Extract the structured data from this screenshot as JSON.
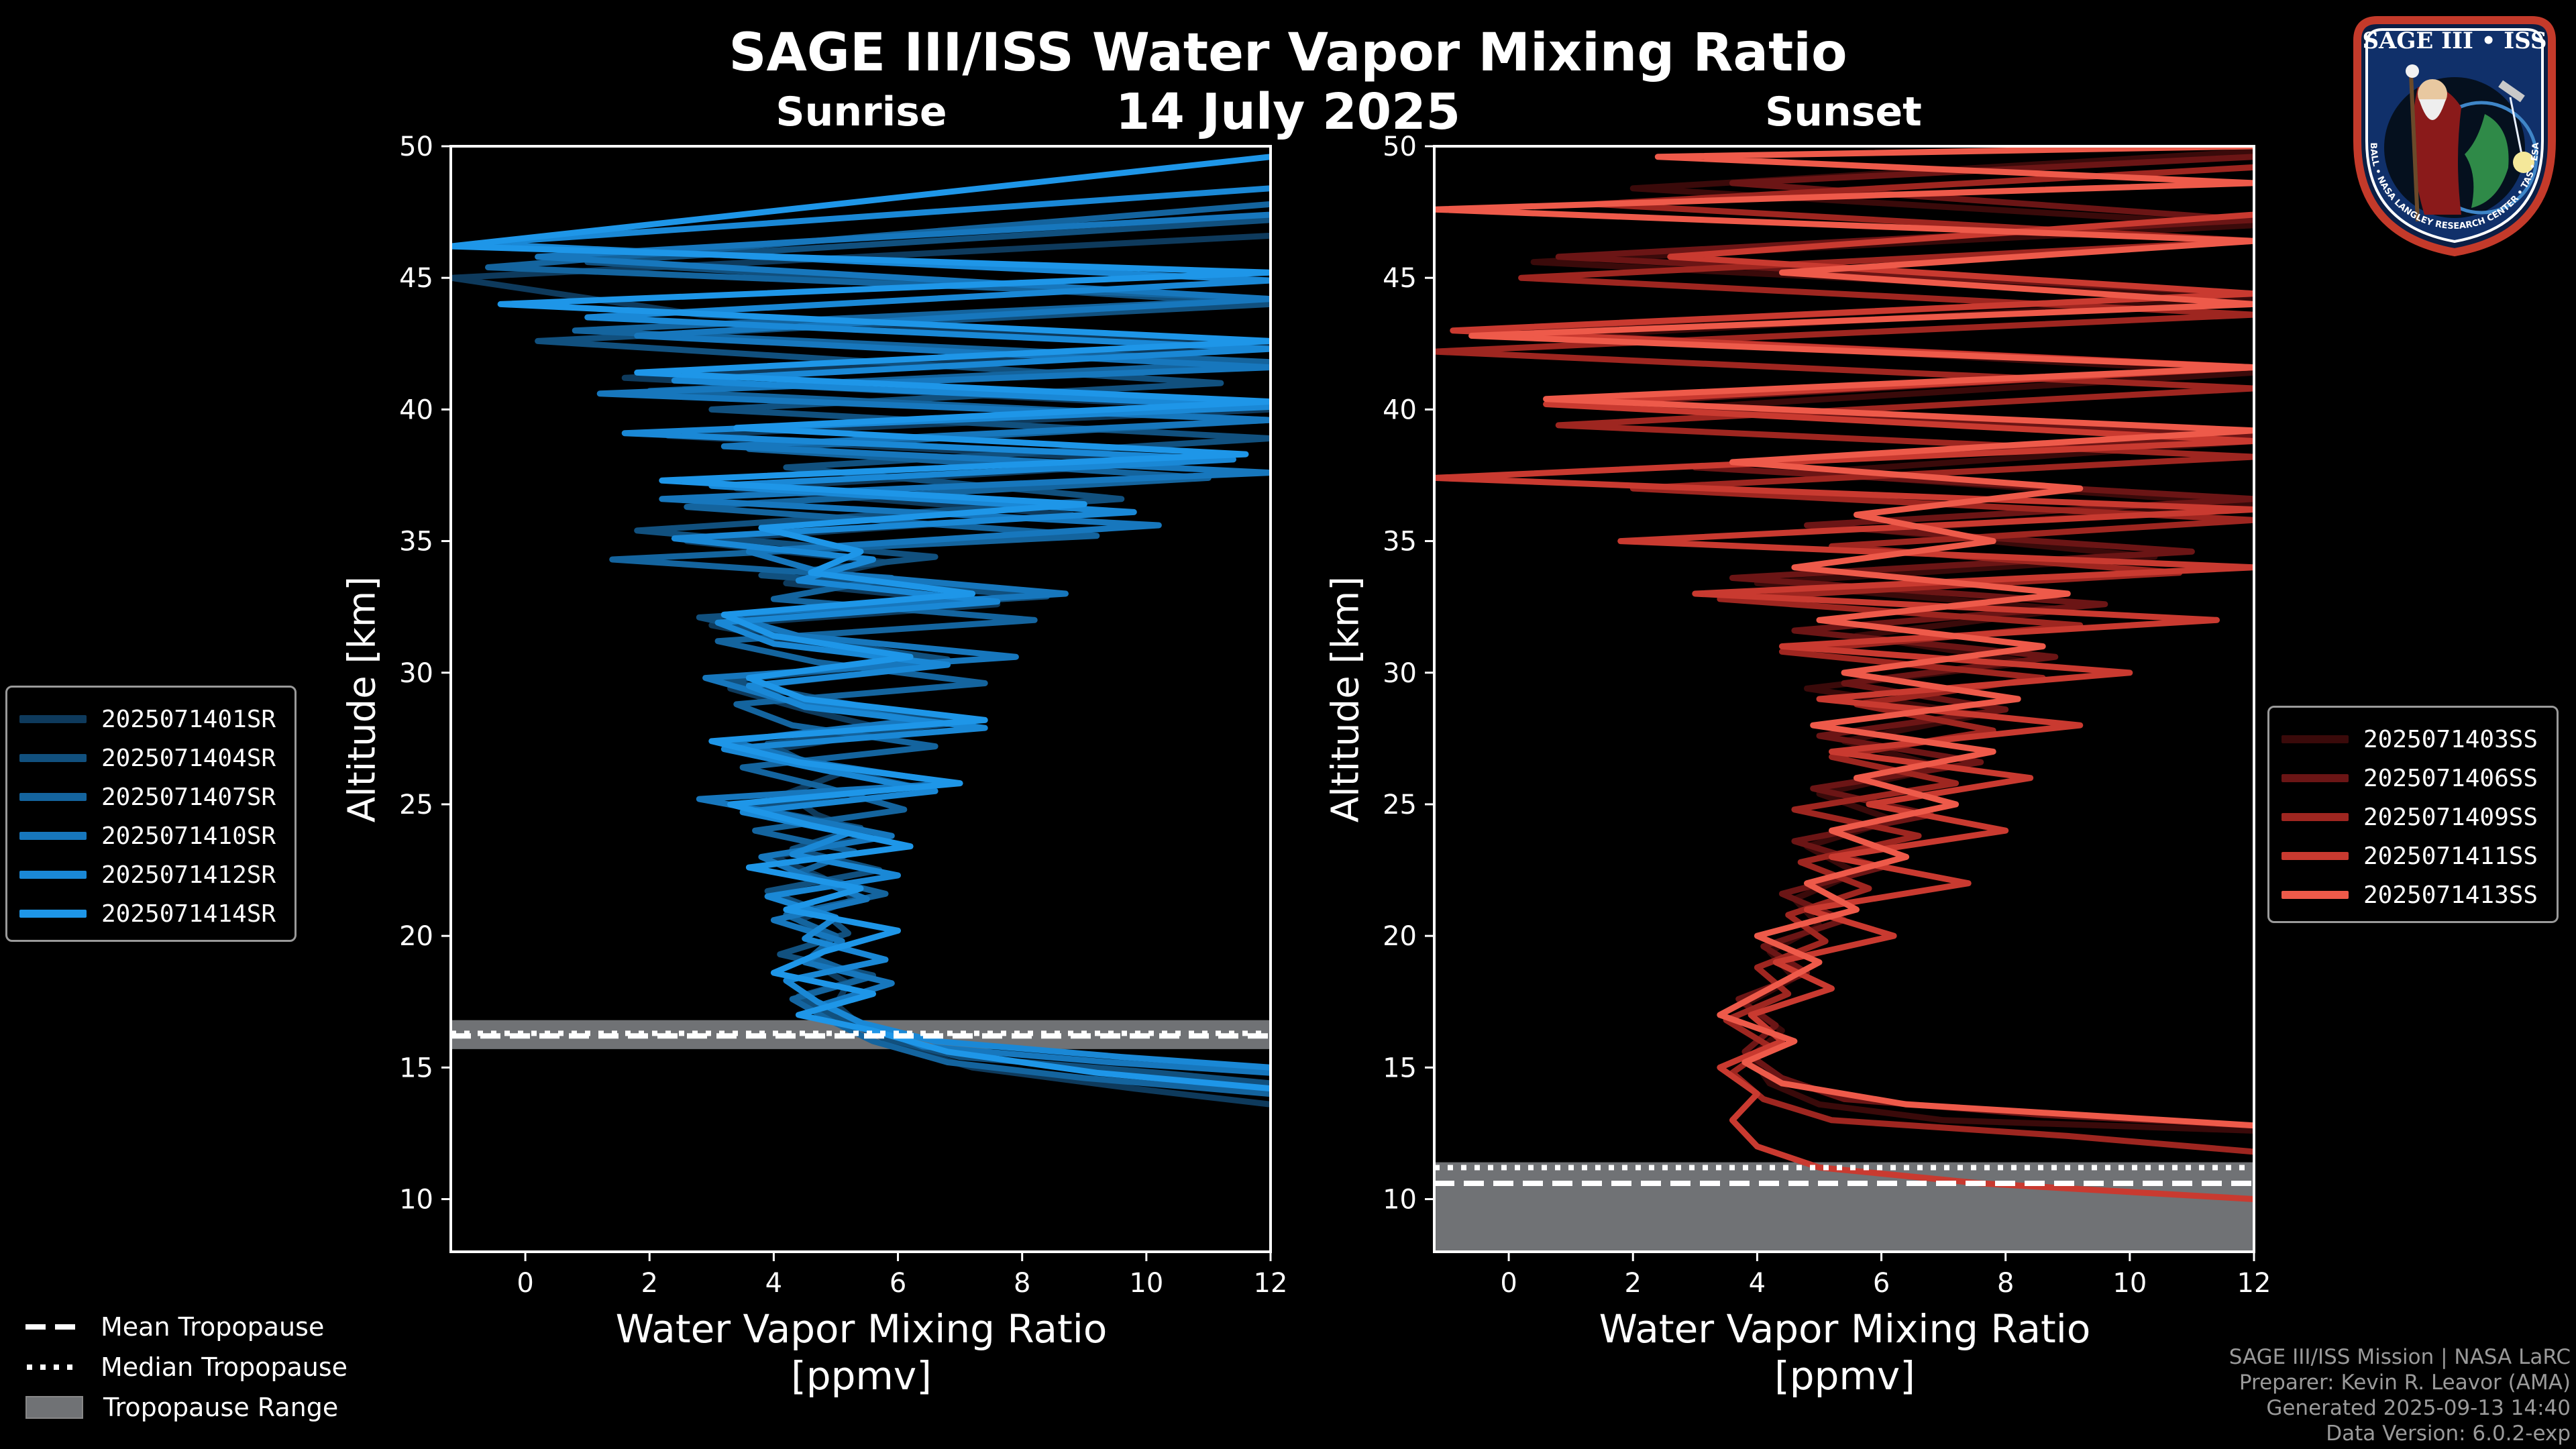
{
  "header": {
    "title": "SAGE III/ISS Water Vapor Mixing Ratio",
    "date": "14 July 2025"
  },
  "panels": {
    "sunrise": {
      "title": "Sunrise",
      "ylabel": "Altitude [km]",
      "xlabel_line1": "Water Vapor Mixing Ratio",
      "xlabel_line2": "[ppmv]"
    },
    "sunset": {
      "title": "Sunset",
      "ylabel": "Altitude [km]",
      "xlabel_line1": "Water Vapor Mixing Ratio",
      "xlabel_line2": "[ppmv]"
    }
  },
  "legend_sunrise": [
    {
      "label": "2025071401SR",
      "color": "#0e3a5c"
    },
    {
      "label": "2025071404SR",
      "color": "#11507e"
    },
    {
      "label": "2025071407SR",
      "color": "#14649e"
    },
    {
      "label": "2025071410SR",
      "color": "#1777bd"
    },
    {
      "label": "2025071412SR",
      "color": "#1a88d6"
    },
    {
      "label": "2025071414SR",
      "color": "#1e96e8"
    }
  ],
  "legend_sunset": [
    {
      "label": "2025071403SS",
      "color": "#3a0a0a"
    },
    {
      "label": "2025071406SS",
      "color": "#6b1515"
    },
    {
      "label": "2025071409SS",
      "color": "#9e2620"
    },
    {
      "label": "2025071411SS",
      "color": "#c93a30"
    },
    {
      "label": "2025071413SS",
      "color": "#ee5a4a"
    }
  ],
  "tropopause_legend": {
    "mean": "Mean Tropopause",
    "median": "Median Tropopause",
    "range": "Tropopause Range",
    "range_color": "#707275"
  },
  "credits": {
    "line1": "SAGE III/ISS Mission | NASA LaRC",
    "line2": "Preparer: Kevin R. Leavor (AMA)",
    "line3": "Generated 2025-09-13 14:40",
    "line4": "Data Version: 6.0.2-exp"
  },
  "logo": {
    "top_text": "SAGE III • ISS",
    "ring_text": "BALL • NASA LANGLEY RESEARCH CENTER • TAS • ESA"
  },
  "chart_data": [
    {
      "type": "line",
      "name": "Sunrise",
      "title": "Sunrise",
      "xlabel": "Water Vapor Mixing Ratio [ppmv]",
      "ylabel": "Altitude [km]",
      "xlim": [
        -1.2,
        12
      ],
      "ylim": [
        8,
        50
      ],
      "xticks": [
        0,
        2,
        4,
        6,
        8,
        10,
        12
      ],
      "yticks": [
        10,
        15,
        20,
        25,
        30,
        35,
        40,
        45,
        50
      ],
      "tropopause": {
        "mean": 16.2,
        "median": 16.3,
        "range": [
          15.7,
          16.8
        ]
      },
      "series": [
        {
          "name": "2025071401SR",
          "x": [
            12,
            9.8,
            7.2,
            6.0,
            5.4,
            5.0,
            5.2,
            4.6,
            4.9,
            4.4,
            5.3,
            4.8,
            4.0,
            5.6,
            4.7,
            4.2,
            5.1,
            3.8,
            5.9,
            4.5,
            3.3,
            6.4,
            4.8,
            3.0,
            7.6,
            4.2,
            5.8,
            2.6,
            8.8,
            3.4,
            10.6,
            2.3,
            12,
            1.6,
            12,
            2.8,
            -1.2,
            12
          ],
          "y": [
            13.6,
            14.2,
            15.0,
            15.8,
            16.6,
            17.4,
            18.2,
            19.0,
            19.8,
            20.6,
            21.4,
            22.2,
            23.0,
            23.8,
            24.6,
            25.4,
            26.2,
            27.0,
            27.8,
            28.6,
            29.4,
            30.2,
            31.0,
            31.8,
            32.6,
            33.4,
            34.2,
            35.0,
            36.0,
            37.0,
            38.0,
            39.0,
            40.0,
            41.2,
            42.4,
            43.6,
            45.0,
            46.6
          ]
        },
        {
          "name": "2025071404SR",
          "x": [
            12,
            10.2,
            7.0,
            5.8,
            5.0,
            4.4,
            5.6,
            4.1,
            5.2,
            4.8,
            3.9,
            5.7,
            4.3,
            5.4,
            3.6,
            6.2,
            4.6,
            3.9,
            7.0,
            5.0,
            3.2,
            6.8,
            4.4,
            2.8,
            8.4,
            3.8,
            6.6,
            1.8,
            9.6,
            4.2,
            12,
            3.0,
            11.2,
            0.2,
            12,
            1.0,
            12
          ],
          "y": [
            14.4,
            14.8,
            15.4,
            16.1,
            16.9,
            17.7,
            18.5,
            19.3,
            20.1,
            20.9,
            21.7,
            22.5,
            23.3,
            24.1,
            24.9,
            25.7,
            26.5,
            27.3,
            28.1,
            28.9,
            29.7,
            30.5,
            31.3,
            32.1,
            32.9,
            33.7,
            34.4,
            35.4,
            36.6,
            37.8,
            38.9,
            40.0,
            41.0,
            42.6,
            44.0,
            45.6,
            47.2
          ]
        },
        {
          "name": "2025071407SR",
          "x": [
            12,
            9.0,
            6.8,
            5.6,
            4.9,
            4.3,
            5.5,
            4.6,
            5.0,
            4.2,
            5.8,
            4.4,
            5.3,
            3.7,
            6.1,
            4.9,
            3.5,
            6.6,
            4.3,
            3.4,
            7.4,
            4.7,
            3.1,
            8.2,
            4.0,
            5.9,
            1.4,
            9.2,
            2.6,
            11.0,
            3.6,
            12,
            2.0,
            12,
            0.8,
            12,
            -0.6,
            12
          ],
          "y": [
            14.0,
            14.6,
            15.2,
            16.0,
            16.8,
            17.6,
            18.4,
            19.2,
            20.0,
            20.8,
            21.6,
            22.4,
            23.2,
            24.0,
            24.8,
            25.6,
            26.4,
            27.2,
            28.0,
            28.8,
            29.6,
            30.4,
            31.2,
            32.0,
            32.8,
            33.6,
            34.3,
            35.2,
            36.3,
            37.4,
            38.5,
            39.6,
            40.7,
            41.8,
            43.0,
            44.2,
            45.4,
            47.8
          ]
        },
        {
          "name": "2025071410SR",
          "x": [
            12,
            9.4,
            6.4,
            5.5,
            4.8,
            5.9,
            4.5,
            5.1,
            4.0,
            5.5,
            4.6,
            3.8,
            5.9,
            4.2,
            2.8,
            6.9,
            4.6,
            3.3,
            6.3,
            4.1,
            2.9,
            7.9,
            4.4,
            3.2,
            8.7,
            4.8,
            3.6,
            10.2,
            2.2,
            12,
            3.2,
            12,
            1.2,
            12,
            1.8,
            12,
            0.2,
            12
          ],
          "y": [
            14.8,
            15.2,
            15.8,
            16.6,
            17.4,
            18.2,
            19.0,
            19.8,
            20.6,
            21.4,
            22.2,
            23.0,
            23.8,
            24.6,
            25.2,
            25.8,
            26.6,
            27.4,
            28.2,
            29.0,
            29.8,
            30.6,
            31.4,
            32.2,
            33.0,
            33.8,
            34.6,
            35.6,
            36.6,
            37.6,
            38.6,
            39.6,
            40.6,
            41.6,
            42.8,
            44.2,
            45.8,
            47.4
          ]
        },
        {
          "name": "2025071412SR",
          "x": [
            12,
            9.6,
            6.6,
            5.4,
            4.7,
            4.2,
            5.8,
            4.5,
            5.0,
            3.9,
            6.0,
            4.3,
            5.2,
            3.5,
            6.6,
            4.8,
            3.2,
            7.4,
            4.5,
            3.6,
            6.8,
            4.0,
            3.1,
            7.6,
            4.4,
            5.6,
            2.4,
            9.8,
            3.0,
            11.4,
            1.6,
            12,
            2.4,
            12,
            1.0,
            12,
            -0.8,
            12
          ],
          "y": [
            15.0,
            15.4,
            16.0,
            16.7,
            17.5,
            18.3,
            19.1,
            19.9,
            20.7,
            21.5,
            22.3,
            23.1,
            23.9,
            24.7,
            25.5,
            26.3,
            27.1,
            27.9,
            28.7,
            29.5,
            30.3,
            31.1,
            31.9,
            32.7,
            33.5,
            34.3,
            35.1,
            36.1,
            37.1,
            38.1,
            39.1,
            40.1,
            41.1,
            42.3,
            43.5,
            44.9,
            46.3,
            48.4
          ]
        },
        {
          "name": "2025071414SR",
          "x": [
            12,
            9.2,
            6.8,
            5.6,
            4.4,
            5.6,
            4.0,
            4.8,
            6.0,
            4.2,
            5.4,
            3.6,
            6.2,
            4.6,
            3.3,
            7.0,
            4.4,
            3.0,
            7.4,
            4.5,
            3.6,
            6.2,
            4.0,
            3.2,
            7.2,
            4.6,
            5.4,
            3.8,
            9.0,
            2.2,
            11.6,
            3.4,
            12,
            1.8,
            12,
            -0.4,
            12,
            -1.2,
            12
          ],
          "y": [
            14.2,
            14.8,
            15.6,
            16.4,
            17.0,
            17.8,
            18.6,
            19.4,
            20.2,
            21.0,
            21.8,
            22.6,
            23.4,
            24.2,
            25.0,
            25.8,
            26.6,
            27.4,
            28.2,
            29.0,
            29.8,
            30.6,
            31.4,
            32.2,
            33.0,
            33.8,
            34.6,
            35.5,
            36.4,
            37.3,
            38.3,
            39.3,
            40.3,
            41.4,
            42.6,
            44.0,
            45.2,
            46.2,
            49.6
          ]
        }
      ]
    },
    {
      "type": "line",
      "name": "Sunset",
      "title": "Sunset",
      "xlabel": "Water Vapor Mixing Ratio [ppmv]",
      "ylabel": "Altitude [km]",
      "xlim": [
        -1.2,
        12
      ],
      "ylim": [
        8,
        50
      ],
      "xticks": [
        0,
        2,
        4,
        6,
        8,
        10,
        12
      ],
      "yticks": [
        10,
        15,
        20,
        25,
        30,
        35,
        40,
        45,
        50
      ],
      "tropopause": {
        "mean": 10.6,
        "median": 11.2,
        "range": [
          8.0,
          11.4
        ]
      },
      "series": [
        {
          "name": "2025071403SS",
          "x": [
            12,
            7.0,
            5.0,
            4.2,
            3.9,
            4.4,
            3.8,
            4.6,
            4.2,
            5.0,
            4.6,
            5.6,
            4.8,
            6.2,
            5.0,
            7.0,
            5.4,
            7.6,
            4.8,
            8.4,
            5.6,
            9.0,
            4.0,
            10.4,
            6.0,
            12,
            4.8,
            12,
            2.4,
            12,
            1.0,
            12,
            0.4,
            12,
            2.0,
            12
          ],
          "y": [
            12.6,
            13.0,
            13.6,
            14.4,
            15.4,
            16.4,
            17.4,
            18.4,
            19.4,
            20.4,
            21.4,
            22.4,
            23.4,
            24.4,
            25.4,
            26.4,
            27.4,
            28.4,
            29.4,
            30.4,
            31.4,
            32.4,
            33.4,
            34.4,
            35.4,
            36.4,
            37.6,
            38.8,
            40.0,
            41.4,
            42.8,
            44.2,
            45.6,
            47.0,
            48.4,
            49.8
          ]
        },
        {
          "name": "2025071406SS",
          "x": [
            12,
            8.6,
            5.4,
            4.4,
            3.8,
            4.3,
            3.7,
            4.8,
            4.1,
            5.4,
            4.4,
            6.0,
            4.6,
            6.8,
            4.9,
            7.6,
            5.0,
            8.0,
            5.4,
            8.8,
            4.6,
            9.6,
            3.6,
            11.0,
            4.8,
            12,
            3.0,
            12,
            1.2,
            12,
            -0.6,
            12,
            0.8,
            12,
            3.6,
            12
          ],
          "y": [
            12.8,
            13.2,
            13.8,
            14.6,
            15.6,
            16.6,
            17.6,
            18.6,
            19.6,
            20.6,
            21.6,
            22.6,
            23.6,
            24.6,
            25.6,
            26.6,
            27.6,
            28.6,
            29.6,
            30.6,
            31.6,
            32.6,
            33.6,
            34.6,
            35.6,
            36.6,
            37.8,
            39.0,
            40.2,
            41.6,
            43.0,
            44.4,
            45.8,
            47.2,
            48.6,
            49.6
          ]
        },
        {
          "name": "2025071409SS",
          "x": [
            12,
            9.0,
            5.2,
            4.1,
            3.6,
            4.2,
            3.5,
            4.5,
            4.0,
            5.1,
            4.5,
            5.8,
            4.7,
            6.6,
            4.6,
            7.2,
            5.2,
            7.8,
            5.6,
            8.6,
            4.4,
            9.2,
            3.4,
            10.8,
            5.2,
            12,
            2.0,
            12,
            0.8,
            12,
            -1.2,
            12,
            0.2,
            12,
            1.4,
            12
          ],
          "y": [
            11.8,
            12.4,
            13.0,
            13.8,
            14.8,
            15.8,
            16.8,
            17.8,
            18.8,
            19.8,
            20.8,
            21.8,
            22.8,
            23.8,
            24.8,
            25.8,
            26.8,
            27.8,
            28.8,
            29.8,
            30.8,
            31.8,
            32.8,
            33.8,
            34.8,
            35.8,
            37.0,
            38.2,
            39.4,
            40.8,
            42.2,
            43.6,
            45.0,
            46.4,
            47.8,
            49.2
          ]
        },
        {
          "name": "2025071411SS",
          "x": [
            12,
            7.6,
            5.0,
            4.0,
            3.6,
            4.0,
            3.4,
            4.4,
            3.9,
            5.2,
            4.3,
            6.2,
            4.8,
            7.4,
            5.2,
            8.0,
            5.8,
            8.4,
            5.2,
            9.2,
            5.0,
            10.0,
            4.4,
            11.4,
            3.0,
            12,
            1.8,
            12,
            -1.2,
            12,
            0.6,
            12,
            -0.9,
            12,
            2.6,
            12
          ],
          "y": [
            10.0,
            10.6,
            11.2,
            12.0,
            13.0,
            14.0,
            15.0,
            16.0,
            17.0,
            18.0,
            19.0,
            20.0,
            21.0,
            22.0,
            23.0,
            24.0,
            25.0,
            26.0,
            27.0,
            28.0,
            29.0,
            30.0,
            31.0,
            32.0,
            33.0,
            34.0,
            35.0,
            36.2,
            37.4,
            38.8,
            40.2,
            41.6,
            43.0,
            44.4,
            45.8,
            47.4
          ]
        },
        {
          "name": "2025071413SS",
          "x": [
            12,
            6.4,
            4.4,
            3.8,
            4.6,
            3.4,
            4.2,
            5.0,
            4.0,
            5.6,
            4.8,
            6.4,
            5.2,
            7.2,
            5.6,
            7.8,
            4.9,
            8.2,
            5.4,
            8.6,
            5.0,
            9.0,
            4.6,
            7.8,
            5.6,
            9.2,
            3.6,
            12,
            0.6,
            12,
            -0.6,
            12,
            4.4,
            12,
            -1.2,
            12,
            2.4,
            12
          ],
          "y": [
            12.8,
            13.6,
            14.4,
            15.2,
            16.0,
            17.0,
            18.0,
            19.0,
            20.0,
            21.0,
            22.0,
            23.0,
            24.0,
            25.0,
            26.0,
            27.0,
            28.0,
            29.0,
            30.0,
            31.0,
            32.0,
            33.0,
            34.0,
            35.0,
            36.0,
            37.0,
            38.0,
            39.2,
            40.4,
            41.6,
            42.8,
            44.0,
            45.2,
            46.4,
            47.6,
            48.6,
            49.6,
            50.0
          ]
        }
      ]
    }
  ]
}
